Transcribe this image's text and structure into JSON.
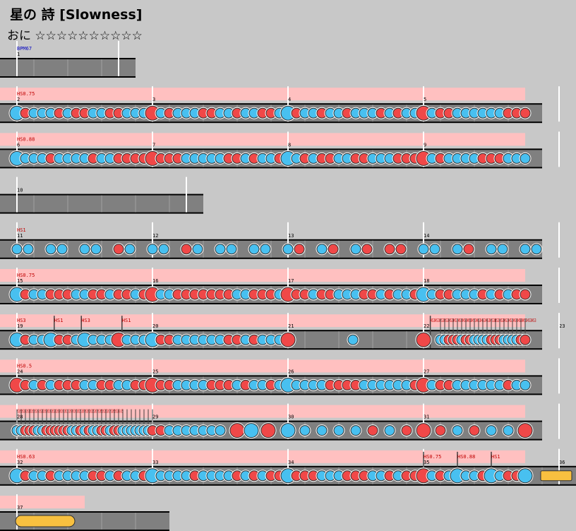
{
  "song": {
    "title": "星の 詩 [Slowness]",
    "course": "おに",
    "stars": "☆☆☆☆☆☆☆☆☆☆"
  },
  "colors": {
    "background": "#c8c8c8",
    "lane": "#808080",
    "hs_band": "#ffc0c0",
    "don": "#f04848",
    "ka": "#48c0f0",
    "roll": "#f8c040",
    "event_text": "#c00000",
    "bpm_text": "#0000c0"
  },
  "rows": [
    {
      "measures": [
        "1"
      ],
      "beats": 4,
      "events": [
        {
          "text": "BPM67",
          "type": "bpm",
          "pos": 0
        }
      ],
      "hs_band": false,
      "pattern": "none"
    },
    {
      "measures": [
        "2",
        "3",
        "4",
        "5"
      ],
      "beats": 16,
      "events": [
        {
          "text": "HS0.75",
          "type": "hs",
          "pos": 0
        }
      ],
      "hs_band": true,
      "pattern": "dense"
    },
    {
      "measures": [
        "6",
        "7",
        "8",
        "9"
      ],
      "beats": 16,
      "events": [
        {
          "text": "HS0.88",
          "type": "hs",
          "pos": 0
        }
      ],
      "hs_band": true,
      "pattern": "dense"
    },
    {
      "measures": [
        "10"
      ],
      "beats": 6,
      "events": [],
      "hs_band": false,
      "pattern": "none"
    },
    {
      "measures": [
        "11",
        "12",
        "13",
        "14"
      ],
      "beats": 16,
      "events": [
        {
          "text": "HS1",
          "type": "hs",
          "pos": 0
        }
      ],
      "hs_band": false,
      "pattern": "pairs"
    },
    {
      "measures": [
        "15",
        "16",
        "17",
        "18"
      ],
      "beats": 16,
      "events": [
        {
          "text": "HS0.75",
          "type": "hs",
          "pos": 0
        }
      ],
      "hs_band": true,
      "pattern": "dense"
    },
    {
      "measures": [
        "19",
        "20",
        "21",
        "22",
        "23"
      ],
      "beats": 16,
      "events": [
        {
          "text": "HS3",
          "type": "hs",
          "pos": 0
        },
        {
          "text": "HS1",
          "type": "hs",
          "pos": 1.1
        },
        {
          "text": "HS3",
          "type": "hs",
          "pos": 1.9
        },
        {
          "text": "HS1",
          "type": "hs",
          "pos": 3.1
        },
        {
          "text": "HS3HS3HS3HS3HS3HS3HS3HS3HS3HS3HS3HS3HS3HS3HS3HS3HS3HS3HS3HS3HS3HS3HS3",
          "type": "hs",
          "pos": 12.2
        }
      ],
      "hs_band": true,
      "pattern": "mixed19"
    },
    {
      "measures": [
        "24",
        "25",
        "26",
        "27"
      ],
      "beats": 16,
      "events": [
        {
          "text": "HS0.5",
          "type": "hs",
          "pos": 0
        }
      ],
      "hs_band": true,
      "pattern": "dense"
    },
    {
      "measures": [
        "28",
        "29",
        "30",
        "31"
      ],
      "beats": 16,
      "events": [
        {
          "text": "HS1HS1HS1HS1HS1HS1HS1HS1HS1HS1HS1HS1HS1HS1HS1HS1HS1HS1HS1HS1HS1HS1HS1HS1HS1HS1HS1HS1HS1HS1HS1HS1HS1HS1HS1HS1HS1HS1HS1HS1HS0.85",
          "type": "hs",
          "pos": 0
        }
      ],
      "hs_band": true,
      "pattern": "mixed28"
    },
    {
      "measures": [
        "32",
        "33",
        "34",
        "35",
        "36"
      ],
      "beats": 17,
      "events": [
        {
          "text": "HS0.63",
          "type": "hs",
          "pos": 0
        },
        {
          "text": "HS0.75",
          "type": "hs",
          "pos": 12
        },
        {
          "text": "HS0.88",
          "type": "hs",
          "pos": 13
        },
        {
          "text": "HS1",
          "type": "hs",
          "pos": 14
        }
      ],
      "hs_band": true,
      "pattern": "mixed32"
    },
    {
      "measures": [
        "37"
      ],
      "beats": 5,
      "events": [],
      "hs_band": true,
      "pattern": "roll"
    }
  ]
}
